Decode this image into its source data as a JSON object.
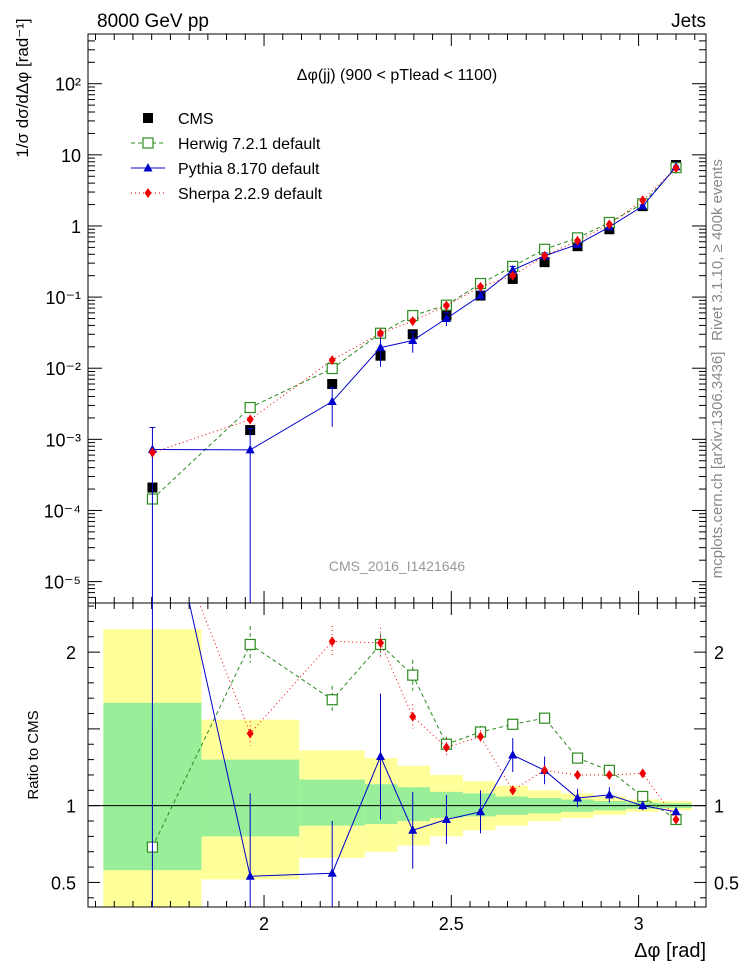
{
  "header": {
    "left_label": "8000 GeV pp",
    "right_label": "Jets"
  },
  "side_text": {
    "rivet": "Rivet 3.1.10, ≥ 400k events",
    "mcplots": "mcplots.cern.ch [arXiv:1306.3436]"
  },
  "chart_data": {
    "type": "line",
    "title": "Δφ(jj) (900 < pTlead <  1100)",
    "watermark": "CMS_2016_I1421646",
    "ylabel": "1/σ dσ/dΔφ [rad⁻¹]",
    "ylabel_ratio": "Ratio to CMS",
    "xlabel": "Δφ [rad]",
    "xlim": [
      1.53,
      3.18
    ],
    "ylim": [
      5e-06,
      500
    ],
    "yscale": "log",
    "ratio_ylim": [
      0.34,
      2.32
    ],
    "x_ticks": [
      2,
      2.5,
      3
    ],
    "x_tick_labels": [
      "2",
      "2.5",
      "3"
    ],
    "y_ticks": [
      1e-05,
      0.0001,
      0.001,
      0.01,
      0.1,
      1,
      10,
      100
    ],
    "y_tick_labels": [
      "10⁻⁵",
      "10⁻⁴",
      "10⁻³",
      "10⁻²",
      "10⁻¹",
      "1",
      "10",
      "10²"
    ],
    "ratio_ticks": [
      0.5,
      1,
      2
    ],
    "ratio_tick_labels": [
      "0.5",
      "1",
      "2"
    ],
    "legend_position": "top-left",
    "x": [
      1.702,
      1.963,
      2.182,
      2.311,
      2.397,
      2.487,
      2.578,
      2.664,
      2.749,
      2.837,
      2.922,
      3.011,
      3.1
    ],
    "bin_edges": [
      1.571,
      1.833,
      2.094,
      2.269,
      2.356,
      2.443,
      2.531,
      2.618,
      2.705,
      2.793,
      2.88,
      2.967,
      3.054,
      3.142
    ],
    "series": [
      {
        "name": "CMS",
        "color": "#000000",
        "marker": "square",
        "values": [
          0.00021,
          0.00135,
          0.006,
          0.015,
          0.03,
          0.055,
          0.105,
          0.18,
          0.31,
          0.52,
          0.9,
          1.9,
          7.2
        ]
      },
      {
        "name": "Herwig 7.2.1 default",
        "color": "#2e8b22",
        "marker": "open-square",
        "dash": "4,3",
        "values": [
          0.000145,
          0.0028,
          0.0099,
          0.031,
          0.055,
          0.077,
          0.155,
          0.27,
          0.47,
          0.68,
          1.12,
          2.05,
          6.6
        ],
        "errors": [
          0.0,
          0.0002,
          0.0,
          0.0,
          0.0,
          0.0,
          0.0,
          0.0,
          0.0,
          0.0,
          0.0,
          0.0,
          0.0
        ],
        "ratio": [
          0.73,
          2.05,
          1.69,
          2.05,
          1.85,
          1.4,
          1.48,
          1.53,
          1.57,
          1.31,
          1.23,
          1.06,
          0.91
        ],
        "ratio_errors": [
          0.77,
          0.12,
          0.09,
          0.07,
          0.1,
          0.05,
          0.04,
          0.03,
          0.02,
          0.02,
          0.02,
          0.01,
          0.01
        ]
      },
      {
        "name": "Pythia 8.170 default",
        "color": "#0000cc",
        "marker": "triangle",
        "dash": "",
        "values": [
          0.00072,
          0.00071,
          0.0034,
          0.0195,
          0.0245,
          0.05,
          0.105,
          0.24,
          0.38,
          0.55,
          0.97,
          1.9,
          6.8
        ],
        "errors": [
          0.00075,
          0.00071,
          0.0019,
          0.009,
          0.008,
          0.011,
          0.015,
          0.03,
          0.04,
          0.05,
          0.06,
          0.08,
          0.15
        ],
        "ratio": [
          3.4,
          0.54,
          0.56,
          1.32,
          0.84,
          0.91,
          0.96,
          1.33,
          1.23,
          1.05,
          1.07,
          1.0,
          0.96
        ],
        "ratio_errors": [
          3.4,
          0.54,
          0.34,
          0.41,
          0.25,
          0.16,
          0.14,
          0.11,
          0.09,
          0.06,
          0.05,
          0.03,
          0.02
        ]
      },
      {
        "name": "Sherpa 2.2.9 default",
        "color": "#ee0000",
        "marker": "diamond",
        "dash": "1,3",
        "values": [
          0.00065,
          0.0019,
          0.013,
          0.031,
          0.046,
          0.076,
          0.14,
          0.2,
          0.38,
          0.62,
          1.05,
          2.3,
          6.5
        ],
        "errors": [
          4e-05,
          0.0001,
          0.0006,
          0.002,
          0.003,
          0.004,
          0.006,
          0.01,
          0.015,
          0.02,
          0.03,
          0.05,
          0.1
        ],
        "ratio": [
          3.1,
          1.47,
          2.07,
          2.06,
          1.58,
          1.38,
          1.45,
          1.1,
          1.23,
          1.2,
          1.2,
          1.21,
          0.91
        ],
        "ratio_errors": [
          0.2,
          0.08,
          0.1,
          0.1,
          0.08,
          0.06,
          0.04,
          0.03,
          0.03,
          0.02,
          0.02,
          0.02,
          0.01
        ]
      }
    ],
    "ratio_band_green": [
      [
        0.58,
        1.67
      ],
      [
        0.8,
        1.3
      ],
      [
        0.87,
        1.17
      ],
      [
        0.88,
        1.14
      ],
      [
        0.9,
        1.12
      ],
      [
        0.92,
        1.09
      ],
      [
        0.93,
        1.08
      ],
      [
        0.94,
        1.06
      ],
      [
        0.95,
        1.05
      ],
      [
        0.96,
        1.04
      ],
      [
        0.97,
        1.03
      ],
      [
        0.98,
        1.02
      ],
      [
        0.985,
        1.015
      ]
    ],
    "ratio_band_yellow": [
      [
        0.34,
        2.15
      ],
      [
        0.52,
        1.56
      ],
      [
        0.66,
        1.36
      ],
      [
        0.7,
        1.31
      ],
      [
        0.74,
        1.26
      ],
      [
        0.8,
        1.2
      ],
      [
        0.84,
        1.16
      ],
      [
        0.87,
        1.13
      ],
      [
        0.9,
        1.1
      ],
      [
        0.92,
        1.08
      ],
      [
        0.94,
        1.06
      ],
      [
        0.96,
        1.04
      ],
      [
        0.97,
        1.03
      ]
    ]
  }
}
